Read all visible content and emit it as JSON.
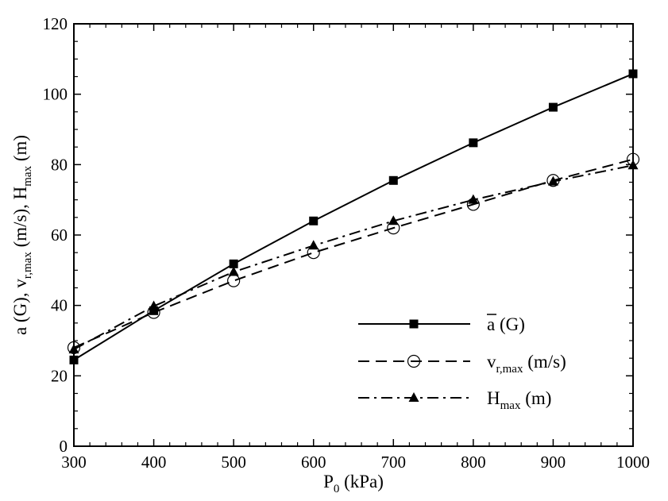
{
  "chart_data": {
    "type": "line",
    "x": [
      300,
      400,
      500,
      600,
      700,
      800,
      900,
      1000
    ],
    "xlim": [
      300,
      1000
    ],
    "ylim": [
      0,
      120
    ],
    "xticks": [
      300,
      400,
      500,
      600,
      700,
      800,
      900,
      1000
    ],
    "yticks": [
      0,
      20,
      40,
      60,
      80,
      100,
      120
    ],
    "xlabel": {
      "main": "P",
      "sub": "0",
      "rest": " (kPa)"
    },
    "ylabel": {
      "parts": [
        {
          "t": "a (G), v",
          "sub": false
        },
        {
          "t": "r,max",
          "sub": true
        },
        {
          "t": " (m/s), H",
          "sub": false
        },
        {
          "t": "max",
          "sub": true
        },
        {
          "t": " (m)",
          "sub": false
        }
      ]
    },
    "grid": false,
    "legend_position": "bottom-right",
    "series": [
      {
        "name": "a (G)",
        "legend": {
          "main": "a",
          "sub": "",
          "rest": " (G)",
          "overbar": true
        },
        "line_style": "solid",
        "marker": "filled-square",
        "values": [
          24.5,
          38.5,
          51.8,
          64.0,
          75.5,
          86.2,
          96.3,
          105.8
        ]
      },
      {
        "name": "v_r,max (m/s)",
        "legend": {
          "main": "v",
          "sub": "r,max",
          "rest": " (m/s)",
          "overbar": false
        },
        "line_style": "dashed",
        "marker": "open-circle",
        "values": [
          28.0,
          38.0,
          47.0,
          55.0,
          62.0,
          68.7,
          75.5,
          81.5
        ]
      },
      {
        "name": "H_max (m)",
        "legend": {
          "main": "H",
          "sub": "max",
          "rest": " (m)",
          "overbar": false
        },
        "line_style": "dash-dot",
        "marker": "filled-triangle",
        "values": [
          27.5,
          39.8,
          49.5,
          57.0,
          64.0,
          70.0,
          75.2,
          79.8
        ]
      }
    ]
  }
}
